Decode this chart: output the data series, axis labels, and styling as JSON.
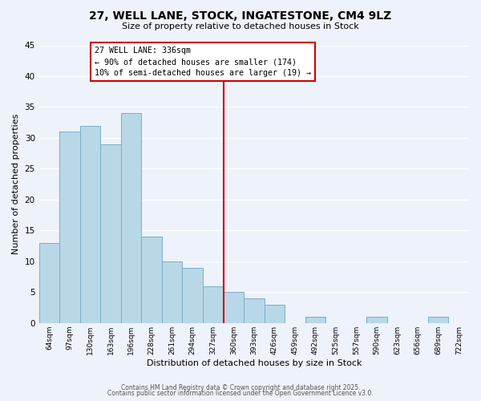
{
  "title": "27, WELL LANE, STOCK, INGATESTONE, CM4 9LZ",
  "subtitle": "Size of property relative to detached houses in Stock",
  "xlabel": "Distribution of detached houses by size in Stock",
  "ylabel": "Number of detached properties",
  "bar_color": "#b8d8e8",
  "bar_edge_color": "#7aaec8",
  "background_color": "#eef2fa",
  "grid_color": "#ffffff",
  "categories": [
    "64sqm",
    "97sqm",
    "130sqm",
    "163sqm",
    "196sqm",
    "228sqm",
    "261sqm",
    "294sqm",
    "327sqm",
    "360sqm",
    "393sqm",
    "426sqm",
    "459sqm",
    "492sqm",
    "525sqm",
    "557sqm",
    "590sqm",
    "623sqm",
    "656sqm",
    "689sqm",
    "722sqm"
  ],
  "values": [
    13,
    31,
    32,
    29,
    34,
    14,
    10,
    9,
    6,
    5,
    4,
    3,
    0,
    1,
    0,
    0,
    1,
    0,
    0,
    1,
    0
  ],
  "ylim": [
    0,
    45
  ],
  "yticks": [
    0,
    5,
    10,
    15,
    20,
    25,
    30,
    35,
    40,
    45
  ],
  "vline_index": 8.5,
  "vline_color": "#cc0000",
  "annotation_title": "27 WELL LANE: 336sqm",
  "annotation_line1": "← 90% of detached houses are smaller (174)",
  "annotation_line2": "10% of semi-detached houses are larger (19) →",
  "footer1": "Contains HM Land Registry data © Crown copyright and database right 2025.",
  "footer2": "Contains public sector information licensed under the Open Government Licence v3.0."
}
